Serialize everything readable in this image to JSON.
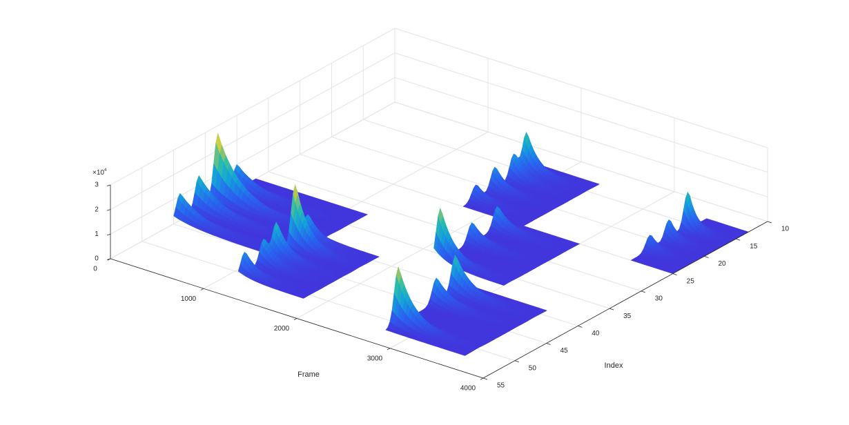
{
  "chart_data": {
    "type": "surface3d",
    "xlabel": "Frame",
    "ylabel": "Index",
    "zexponent": {
      "base": "×10",
      "power": "4"
    },
    "xlim": [
      0,
      4000
    ],
    "xticks": [
      0,
      1000,
      2000,
      3000,
      4000
    ],
    "ylim": [
      10,
      55
    ],
    "yticks": [
      10,
      15,
      20,
      25,
      30,
      35,
      40,
      45,
      50,
      55
    ],
    "zlim": [
      0,
      30000
    ],
    "zticks": [
      0,
      {
        "value": 10000,
        "label": "1"
      },
      {
        "value": 20000,
        "label": "2"
      },
      {
        "value": 30000,
        "label": "3"
      }
    ],
    "grid": true,
    "colormap": [
      "#4034dc",
      "#2864f0",
      "#14a0dc",
      "#28beaa",
      "#aac35a",
      "#fadc28"
    ],
    "surfaces": [
      {
        "xrange": [
          0,
          1200
        ],
        "yrange": [
          32,
          45
        ],
        "peaks": [
          {
            "y": 44,
            "z": 11000
          },
          {
            "y": 41,
            "z": 14000
          },
          {
            "y": 38,
            "z": 27000
          },
          {
            "y": 35,
            "z": 10000
          }
        ]
      },
      {
        "xrange": [
          1750,
          2400
        ],
        "yrange": [
          13,
          25
        ],
        "peaks": [
          {
            "y": 23,
            "z": 6000
          },
          {
            "y": 20,
            "z": 9000
          },
          {
            "y": 17,
            "z": 10000
          },
          {
            "y": 15,
            "z": 16000
          }
        ]
      },
      {
        "xrange": [
          1100,
          1800
        ],
        "yrange": [
          39,
          51
        ],
        "peaks": [
          {
            "y": 50,
            "z": 9000
          },
          {
            "y": 47,
            "z": 10000
          },
          {
            "y": 45,
            "z": 14000
          },
          {
            "y": 42,
            "z": 25000
          },
          {
            "y": 40,
            "z": 10000
          }
        ]
      },
      {
        "xrange": [
          2250,
          3000
        ],
        "yrange": [
          25,
          37
        ],
        "peaks": [
          {
            "y": 36,
            "z": 21000
          },
          {
            "y": 31,
            "z": 8000
          },
          {
            "y": 27,
            "z": 9000
          }
        ]
      },
      {
        "xrange": [
          3550,
          4000
        ],
        "yrange": [
          13,
          25
        ],
        "peaks": [
          {
            "y": 22,
            "z": 6000
          },
          {
            "y": 19,
            "z": 8000
          },
          {
            "y": 16,
            "z": 15000
          }
        ]
      },
      {
        "xrange": [
          2750,
          3600
        ],
        "yrange": [
          39,
          52
        ],
        "peaks": [
          {
            "y": 50,
            "z": 23000
          },
          {
            "y": 44,
            "z": 10000
          },
          {
            "y": 41,
            "z": 15000
          }
        ]
      }
    ]
  }
}
